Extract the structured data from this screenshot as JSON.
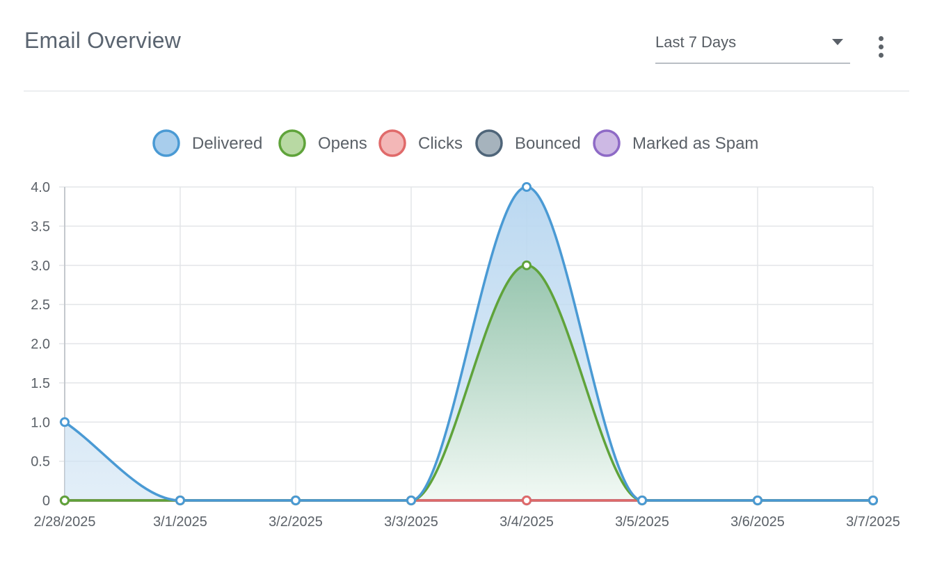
{
  "header": {
    "title": "Email Overview",
    "range_value": "Last 7 Days"
  },
  "colors": {
    "delivered": "#4a9ad4",
    "opens": "#5fa33a",
    "clicks": "#e06a6a",
    "bounced": "#4f6579",
    "spam": "#8e6ac6"
  },
  "chart_data": {
    "type": "line",
    "title": "",
    "xlabel": "",
    "ylabel": "",
    "categories": [
      "2/28/2025",
      "3/1/2025",
      "3/2/2025",
      "3/3/2025",
      "3/4/2025",
      "3/5/2025",
      "3/6/2025",
      "3/7/2025"
    ],
    "ylim": [
      0,
      4
    ],
    "yticks": [
      "0",
      "0.5",
      "1.0",
      "1.5",
      "2.0",
      "2.5",
      "3.0",
      "3.5",
      "4.0"
    ],
    "legend": "top-center",
    "grid": true,
    "series": [
      {
        "name": "Delivered",
        "key": "delivered",
        "values": [
          1,
          0,
          0,
          0,
          4,
          0,
          0,
          0
        ]
      },
      {
        "name": "Opens",
        "key": "opens",
        "values": [
          0,
          0,
          0,
          0,
          3,
          0,
          0,
          0
        ]
      },
      {
        "name": "Clicks",
        "key": "clicks",
        "values": [
          0,
          0,
          0,
          0,
          0,
          0,
          0,
          0
        ]
      },
      {
        "name": "Bounced",
        "key": "bounced",
        "values": [
          0,
          0,
          0,
          0,
          0,
          0,
          0,
          0
        ]
      },
      {
        "name": "Marked as Spam",
        "key": "spam",
        "values": [
          0,
          0,
          0,
          0,
          0,
          0,
          0,
          0
        ]
      }
    ]
  }
}
